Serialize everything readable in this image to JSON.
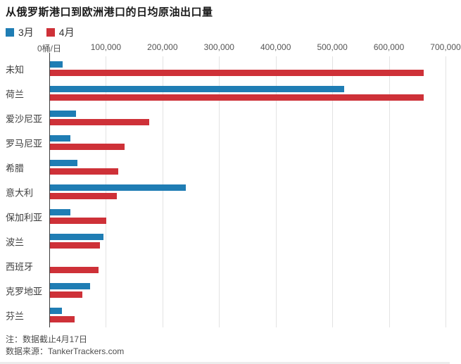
{
  "title": "从俄罗斯港口到欧洲港口的日均原油出口量",
  "legend": {
    "march_label": "3月",
    "april_label": "4月"
  },
  "colors": {
    "march": "#1F7DB4",
    "april": "#CE3138",
    "grid": "#E3E3E3",
    "axis": "#3D3D3D"
  },
  "chart_data": {
    "type": "bar",
    "orientation": "horizontal",
    "title": "从俄罗斯港口到欧洲港口的日均原油出口量",
    "xlabel": "桶/日",
    "ylabel": "",
    "xlim": [
      0,
      700000
    ],
    "grid": true,
    "legend_position": "top-left",
    "x_ticks": {
      "labels": [
        "0桶/日",
        "100,000",
        "200,000",
        "300,000",
        "400,000",
        "500,000",
        "600,000",
        "700,000"
      ],
      "values": [
        0,
        100000,
        200000,
        300000,
        400000,
        500000,
        600000,
        700000
      ]
    },
    "categories": [
      "未知",
      "荷兰",
      "爱沙尼亚",
      "罗马尼亚",
      "希腊",
      "意大利",
      "保加利亚",
      "波兰",
      "西班牙",
      "克罗地亚",
      "芬兰"
    ],
    "series": [
      {
        "name": "3月",
        "color": "#1F7DB4",
        "values": [
          22000,
          520000,
          46000,
          36000,
          48000,
          240000,
          36000,
          94000,
          0,
          71000,
          21000
        ]
      },
      {
        "name": "4月",
        "color": "#CE3138",
        "values": [
          660000,
          660000,
          175000,
          132000,
          120000,
          118000,
          99000,
          88000,
          86000,
          57000,
          43000
        ]
      }
    ]
  },
  "footer": {
    "note": "注：数据截止4月17日",
    "source": "数据来源：TankerTrackers.com"
  }
}
